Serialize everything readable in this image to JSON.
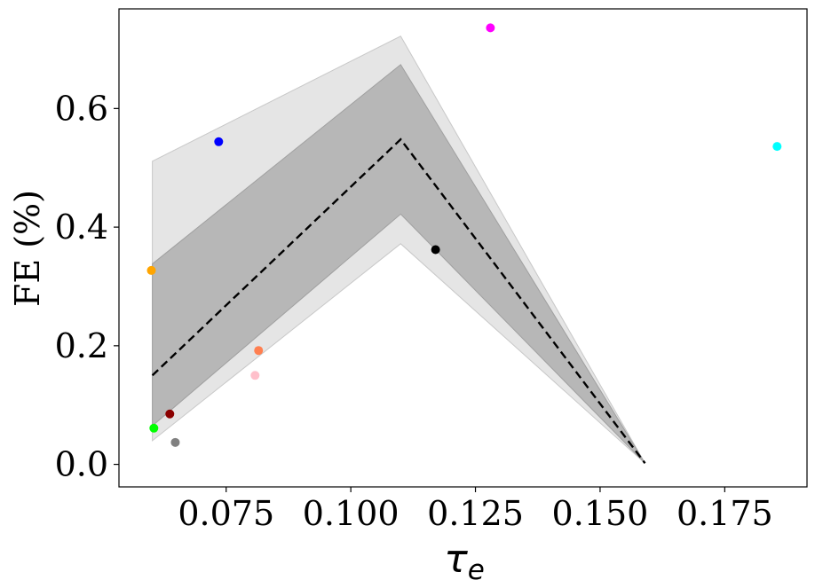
{
  "chart_data": {
    "type": "scatter",
    "title": "",
    "xlabel": "τ",
    "xlabel_sub": "e",
    "ylabel": "FE (%)",
    "xlim": [
      0.0535,
      0.1915
    ],
    "ylim": [
      -0.038,
      0.768
    ],
    "xticks": [
      0.075,
      0.1,
      0.125,
      0.15,
      0.175
    ],
    "xtick_labels": [
      "0.075",
      "0.100",
      "0.125",
      "0.150",
      "0.175"
    ],
    "yticks": [
      0.0,
      0.2,
      0.4,
      0.6
    ],
    "ytick_labels": [
      "0.0",
      "0.2",
      "0.4",
      "0.6"
    ],
    "grid": false,
    "mean_line": {
      "style": "dashed",
      "color": "#000000",
      "x": [
        0.0602,
        0.11,
        0.159
      ],
      "y": [
        0.15,
        0.548,
        0.002
      ]
    },
    "band_outer": {
      "color": "#e5e5e5",
      "x": [
        0.0602,
        0.11,
        0.159
      ],
      "upper": [
        0.511,
        0.722,
        0.002
      ],
      "lower": [
        0.04,
        0.372,
        0.002
      ]
    },
    "band_inner": {
      "color": "#b7b7b7",
      "x": [
        0.0602,
        0.11,
        0.159
      ],
      "upper": [
        0.338,
        0.674,
        0.002
      ],
      "lower": [
        0.065,
        0.422,
        0.002
      ]
    },
    "points": [
      {
        "x": 0.06,
        "y": 0.327,
        "color": "#ffa500"
      },
      {
        "x": 0.0605,
        "y": 0.061,
        "color": "#00ff00"
      },
      {
        "x": 0.0637,
        "y": 0.085,
        "color": "#8b0000"
      },
      {
        "x": 0.0648,
        "y": 0.037,
        "color": "#808080"
      },
      {
        "x": 0.0735,
        "y": 0.544,
        "color": "#0000ff"
      },
      {
        "x": 0.0808,
        "y": 0.15,
        "color": "#ffc0cb"
      },
      {
        "x": 0.0815,
        "y": 0.192,
        "color": "#ff7f50"
      },
      {
        "x": 0.117,
        "y": 0.362,
        "color": "#000000"
      },
      {
        "x": 0.128,
        "y": 0.736,
        "color": "#ff00ff"
      },
      {
        "x": 0.1855,
        "y": 0.536,
        "color": "#00ffff"
      }
    ]
  }
}
